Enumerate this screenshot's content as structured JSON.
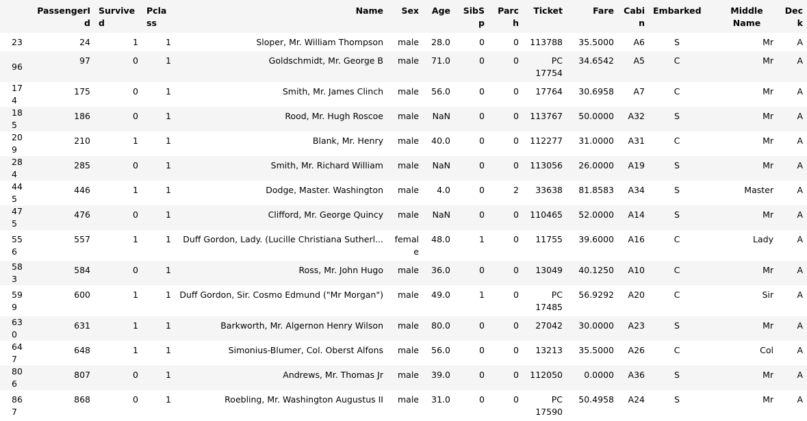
{
  "table": {
    "columns": [
      {
        "key": "index",
        "label": ""
      },
      {
        "key": "PassengerId",
        "label": "PassengerId"
      },
      {
        "key": "Survived",
        "label": "Survived"
      },
      {
        "key": "Pclass",
        "label": "Pclass"
      },
      {
        "key": "Name",
        "label": "Name"
      },
      {
        "key": "Sex",
        "label": "Sex"
      },
      {
        "key": "Age",
        "label": "Age"
      },
      {
        "key": "SibSp",
        "label": "SibSp"
      },
      {
        "key": "Parch",
        "label": "Parch"
      },
      {
        "key": "Ticket",
        "label": "Ticket"
      },
      {
        "key": "Fare",
        "label": "Fare"
      },
      {
        "key": "Cabin",
        "label": "Cabin"
      },
      {
        "key": "Embarked",
        "label": "Embarked"
      },
      {
        "key": "MiddleName",
        "label": "Middle Name"
      },
      {
        "key": "Deck",
        "label": "Deck"
      }
    ],
    "rows": [
      {
        "index": "23",
        "PassengerId": "24",
        "Survived": "1",
        "Pclass": "1",
        "Name": "Sloper, Mr. William Thompson",
        "Sex": "male",
        "Age": "28.0",
        "SibSp": "0",
        "Parch": "0",
        "Ticket": "113788",
        "Fare": "35.5000",
        "Cabin": "A6",
        "Embarked": "S",
        "MiddleName": "Mr",
        "Deck": "A"
      },
      {
        "index": "96",
        "PassengerId": "97",
        "Survived": "0",
        "Pclass": "1",
        "Name": "Goldschmidt, Mr. George B",
        "Sex": "male",
        "Age": "71.0",
        "SibSp": "0",
        "Parch": "0",
        "Ticket": "PC 17754",
        "Fare": "34.6542",
        "Cabin": "A5",
        "Embarked": "C",
        "MiddleName": "Mr",
        "Deck": "A"
      },
      {
        "index": "174",
        "PassengerId": "175",
        "Survived": "0",
        "Pclass": "1",
        "Name": "Smith, Mr. James Clinch",
        "Sex": "male",
        "Age": "56.0",
        "SibSp": "0",
        "Parch": "0",
        "Ticket": "17764",
        "Fare": "30.6958",
        "Cabin": "A7",
        "Embarked": "C",
        "MiddleName": "Mr",
        "Deck": "A"
      },
      {
        "index": "185",
        "PassengerId": "186",
        "Survived": "0",
        "Pclass": "1",
        "Name": "Rood, Mr. Hugh Roscoe",
        "Sex": "male",
        "Age": "NaN",
        "SibSp": "0",
        "Parch": "0",
        "Ticket": "113767",
        "Fare": "50.0000",
        "Cabin": "A32",
        "Embarked": "S",
        "MiddleName": "Mr",
        "Deck": "A"
      },
      {
        "index": "209",
        "PassengerId": "210",
        "Survived": "1",
        "Pclass": "1",
        "Name": "Blank, Mr. Henry",
        "Sex": "male",
        "Age": "40.0",
        "SibSp": "0",
        "Parch": "0",
        "Ticket": "112277",
        "Fare": "31.0000",
        "Cabin": "A31",
        "Embarked": "C",
        "MiddleName": "Mr",
        "Deck": "A"
      },
      {
        "index": "284",
        "PassengerId": "285",
        "Survived": "0",
        "Pclass": "1",
        "Name": "Smith, Mr. Richard William",
        "Sex": "male",
        "Age": "NaN",
        "SibSp": "0",
        "Parch": "0",
        "Ticket": "113056",
        "Fare": "26.0000",
        "Cabin": "A19",
        "Embarked": "S",
        "MiddleName": "Mr",
        "Deck": "A"
      },
      {
        "index": "445",
        "PassengerId": "446",
        "Survived": "1",
        "Pclass": "1",
        "Name": "Dodge, Master. Washington",
        "Sex": "male",
        "Age": "4.0",
        "SibSp": "0",
        "Parch": "2",
        "Ticket": "33638",
        "Fare": "81.8583",
        "Cabin": "A34",
        "Embarked": "S",
        "MiddleName": "Master",
        "Deck": "A"
      },
      {
        "index": "475",
        "PassengerId": "476",
        "Survived": "0",
        "Pclass": "1",
        "Name": "Clifford, Mr. George Quincy",
        "Sex": "male",
        "Age": "NaN",
        "SibSp": "0",
        "Parch": "0",
        "Ticket": "110465",
        "Fare": "52.0000",
        "Cabin": "A14",
        "Embarked": "S",
        "MiddleName": "Mr",
        "Deck": "A"
      },
      {
        "index": "556",
        "PassengerId": "557",
        "Survived": "1",
        "Pclass": "1",
        "Name": "Duff Gordon, Lady. (Lucille Christiana Sutherl...",
        "Sex": "female",
        "Age": "48.0",
        "SibSp": "1",
        "Parch": "0",
        "Ticket": "11755",
        "Fare": "39.6000",
        "Cabin": "A16",
        "Embarked": "C",
        "MiddleName": "Lady",
        "Deck": "A"
      },
      {
        "index": "583",
        "PassengerId": "584",
        "Survived": "0",
        "Pclass": "1",
        "Name": "Ross, Mr. John Hugo",
        "Sex": "male",
        "Age": "36.0",
        "SibSp": "0",
        "Parch": "0",
        "Ticket": "13049",
        "Fare": "40.1250",
        "Cabin": "A10",
        "Embarked": "C",
        "MiddleName": "Mr",
        "Deck": "A"
      },
      {
        "index": "599",
        "PassengerId": "600",
        "Survived": "1",
        "Pclass": "1",
        "Name": "Duff Gordon, Sir. Cosmo Edmund (\"Mr Morgan\")",
        "Sex": "male",
        "Age": "49.0",
        "SibSp": "1",
        "Parch": "0",
        "Ticket": "PC 17485",
        "Fare": "56.9292",
        "Cabin": "A20",
        "Embarked": "C",
        "MiddleName": "Sir",
        "Deck": "A"
      },
      {
        "index": "630",
        "PassengerId": "631",
        "Survived": "1",
        "Pclass": "1",
        "Name": "Barkworth, Mr. Algernon Henry Wilson",
        "Sex": "male",
        "Age": "80.0",
        "SibSp": "0",
        "Parch": "0",
        "Ticket": "27042",
        "Fare": "30.0000",
        "Cabin": "A23",
        "Embarked": "S",
        "MiddleName": "Mr",
        "Deck": "A"
      },
      {
        "index": "647",
        "PassengerId": "648",
        "Survived": "1",
        "Pclass": "1",
        "Name": "Simonius-Blumer, Col. Oberst Alfons",
        "Sex": "male",
        "Age": "56.0",
        "SibSp": "0",
        "Parch": "0",
        "Ticket": "13213",
        "Fare": "35.5000",
        "Cabin": "A26",
        "Embarked": "C",
        "MiddleName": "Col",
        "Deck": "A"
      },
      {
        "index": "806",
        "PassengerId": "807",
        "Survived": "0",
        "Pclass": "1",
        "Name": "Andrews, Mr. Thomas Jr",
        "Sex": "male",
        "Age": "39.0",
        "SibSp": "0",
        "Parch": "0",
        "Ticket": "112050",
        "Fare": "0.0000",
        "Cabin": "A36",
        "Embarked": "S",
        "MiddleName": "Mr",
        "Deck": "A"
      },
      {
        "index": "867",
        "PassengerId": "868",
        "Survived": "0",
        "Pclass": "1",
        "Name": "Roebling, Mr. Washington Augustus II",
        "Sex": "male",
        "Age": "31.0",
        "SibSp": "0",
        "Parch": "0",
        "Ticket": "PC 17590",
        "Fare": "50.4958",
        "Cabin": "A24",
        "Embarked": "S",
        "MiddleName": "Mr",
        "Deck": "A"
      }
    ]
  }
}
